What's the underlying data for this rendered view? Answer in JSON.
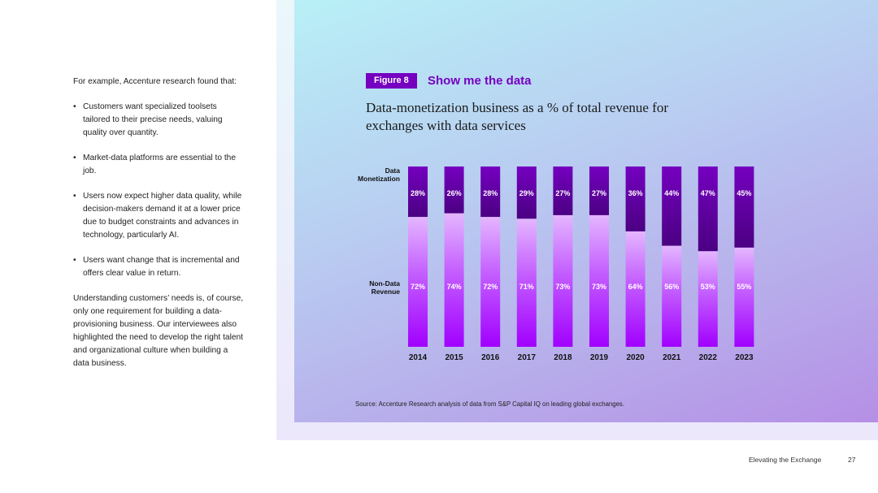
{
  "left": {
    "intro": "For example, Accenture research found that:",
    "bullets": [
      "Customers want specialized toolsets tailored to their precise needs, valuing quality over quantity.",
      "Market-data platforms are essential to the job.",
      "Users now expect higher data quality, while decision-makers demand it at a lower price due to budget constraints and advances in technology, particularly AI.",
      "Users want change that is incremental and offers clear value in return."
    ],
    "outro": "Understanding customers’ needs is, of course, only one requirement for building a data-provisioning business. Our interviewees also highlighted the need to develop the right talent and organizational culture when building a data business."
  },
  "figure": {
    "badge": "Figure 8",
    "title": "Show me the data",
    "source": "Source: Accenture Research analysis of data from S&P Capital IQ on leading global exchanges."
  },
  "chart_data": {
    "type": "bar",
    "stacked": true,
    "title": "Data-monetization business as a % of total revenue for exchanges with data services",
    "categories": [
      "2014",
      "2015",
      "2016",
      "2017",
      "2018",
      "2019",
      "2020",
      "2021",
      "2022",
      "2023"
    ],
    "series": [
      {
        "name": "Data Monetization",
        "label_line1": "Data",
        "label_line2": "Monetization",
        "values": [
          28,
          26,
          28,
          29,
          27,
          27,
          36,
          44,
          47,
          45
        ],
        "color": "#7500c0"
      },
      {
        "name": "Non-Data Revenue",
        "label_line1": "Non-Data",
        "label_line2": "Revenue",
        "values": [
          72,
          74,
          72,
          71,
          73,
          73,
          64,
          56,
          53,
          55
        ],
        "color": "#a100ff"
      }
    ],
    "value_suffix": "%",
    "ylim": [
      0,
      100
    ]
  },
  "footer": {
    "title": "Elevating the Exchange",
    "page": "27"
  }
}
